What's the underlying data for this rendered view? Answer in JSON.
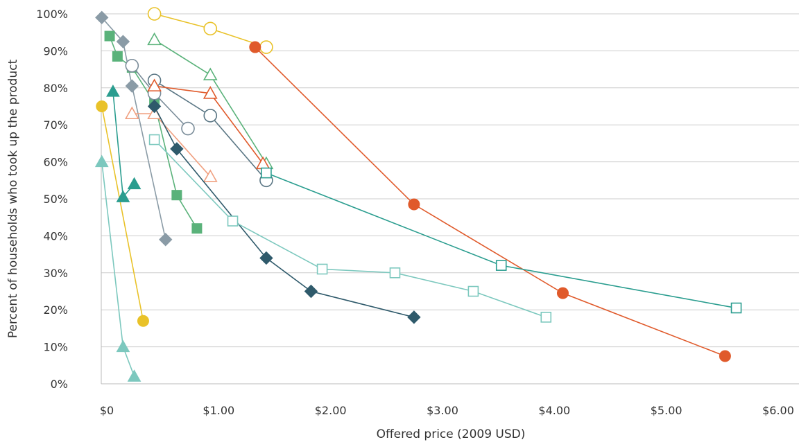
{
  "chart_data": {
    "type": "scatter",
    "title": "",
    "xlabel": "Offered price (2009 USD)",
    "ylabel": "Percent of households who took up the product",
    "xlim": [
      -0.05,
      6.0
    ],
    "ylim": [
      0,
      100
    ],
    "x_ticks": [
      0,
      1,
      2,
      3,
      4,
      5,
      6
    ],
    "x_tick_labels": [
      "$0",
      "$1.00",
      "$2.00",
      "$3.00",
      "$4.00",
      "$5.00",
      "$6.00"
    ],
    "y_ticks": [
      0,
      10,
      20,
      30,
      40,
      50,
      60,
      70,
      80,
      90,
      100
    ],
    "y_tick_labels": [
      "0%",
      "10%",
      "20%",
      "30%",
      "40%",
      "50%",
      "60%",
      "70%",
      "80%",
      "90%",
      "100%"
    ],
    "grid": true,
    "legend": "none",
    "series": [
      {
        "color": "#E9C229",
        "marker": "circle",
        "filled": false,
        "x": [
          0.45,
          0.95,
          1.45
        ],
        "y": [
          100,
          96,
          91
        ]
      },
      {
        "color": "#E9C229",
        "marker": "circle",
        "filled": true,
        "x": [
          -0.02,
          0.35
        ],
        "y": [
          75,
          17
        ]
      },
      {
        "color": "#E05A2B",
        "marker": "circle",
        "filled": true,
        "x": [
          1.35,
          2.77,
          4.1,
          5.55
        ],
        "y": [
          91,
          48.5,
          24.5,
          7.5
        ]
      },
      {
        "color": "#8A9BA6",
        "marker": "diamond",
        "filled": true,
        "x": [
          -0.02,
          0.17,
          0.25,
          0.55
        ],
        "y": [
          99,
          92.5,
          80.5,
          39
        ]
      },
      {
        "color": "#5AB27A",
        "marker": "square",
        "filled": true,
        "x": [
          0.05,
          0.12,
          0.25,
          0.45,
          0.65,
          0.83
        ],
        "y": [
          94,
          88.5,
          85.5,
          76,
          51,
          42
        ]
      },
      {
        "color": "#7A8C99",
        "marker": "circle",
        "filled": false,
        "x": [
          0.25,
          0.45,
          0.75
        ],
        "y": [
          86,
          78.5,
          69
        ]
      },
      {
        "color": "#5A7684",
        "marker": "circle",
        "filled": false,
        "x": [
          0.45,
          0.95,
          1.45
        ],
        "y": [
          82,
          72.5,
          55
        ]
      },
      {
        "color": "#5AB27A",
        "marker": "triangle",
        "filled": false,
        "x": [
          0.45,
          0.95,
          1.45
        ],
        "y": [
          93,
          83.5,
          59.5
        ]
      },
      {
        "color": "#E05A2B",
        "marker": "triangle",
        "filled": false,
        "x": [
          0.45,
          0.95,
          1.42
        ],
        "y": [
          80.5,
          78.5,
          59.5
        ]
      },
      {
        "color": "#F0A080",
        "marker": "triangle",
        "filled": false,
        "x": [
          0.25,
          0.45,
          0.95
        ],
        "y": [
          73,
          73,
          56
        ]
      },
      {
        "color": "#2A9D8F",
        "marker": "triangle",
        "filled": true,
        "x": [
          0.08,
          0.17,
          0.27
        ],
        "y": [
          79,
          50.5,
          54
        ]
      },
      {
        "color": "#7CC8BE",
        "marker": "triangle",
        "filled": true,
        "x": [
          -0.02,
          0.17,
          0.27
        ],
        "y": [
          60,
          10,
          2
        ]
      },
      {
        "color": "#2F5A6B",
        "marker": "diamond",
        "filled": true,
        "x": [
          0.45,
          0.65,
          1.45,
          1.85,
          2.77
        ],
        "y": [
          75,
          63.5,
          34,
          25,
          18
        ]
      },
      {
        "color": "#7CC8BE",
        "marker": "square",
        "filled": false,
        "x": [
          0.45,
          1.15,
          1.95,
          2.6,
          3.3,
          3.95
        ],
        "y": [
          66,
          44,
          31,
          30,
          25,
          18
        ]
      },
      {
        "color": "#2A9D8F",
        "marker": "square",
        "filled": false,
        "x": [
          1.45,
          3.55,
          5.65
        ],
        "y": [
          57,
          32,
          20.5
        ]
      }
    ]
  }
}
